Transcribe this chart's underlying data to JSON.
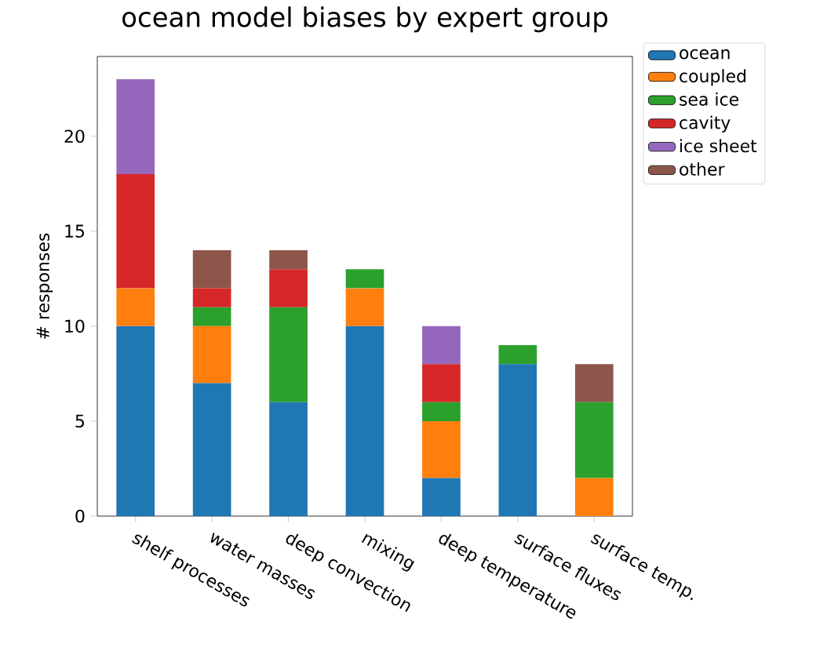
{
  "chart_data": {
    "type": "bar",
    "stacked": true,
    "title": "ocean model biases by expert group",
    "ylabel": "# responses",
    "categories": [
      "shelf processes",
      "water masses",
      "deep convection",
      "mixing",
      "deep temperature",
      "surface fluxes",
      "surface temp."
    ],
    "series": [
      {
        "name": "ocean",
        "color": "#1f77b4",
        "values": [
          10,
          7,
          6,
          10,
          2,
          8,
          0
        ]
      },
      {
        "name": "coupled",
        "color": "#ff7f0e",
        "values": [
          2,
          3,
          0,
          2,
          3,
          0,
          2
        ]
      },
      {
        "name": "sea ice",
        "color": "#2ca02c",
        "values": [
          0,
          1,
          5,
          1,
          1,
          1,
          4
        ]
      },
      {
        "name": "cavity",
        "color": "#d62728",
        "values": [
          6,
          1,
          2,
          0,
          2,
          0,
          0
        ]
      },
      {
        "name": "ice sheet",
        "color": "#9467bd",
        "values": [
          5,
          0,
          0,
          0,
          2,
          0,
          0
        ]
      },
      {
        "name": "other",
        "color": "#8c564b",
        "values": [
          0,
          2,
          1,
          0,
          0,
          0,
          2
        ]
      }
    ],
    "ylim": [
      0,
      24.2
    ],
    "yticks": [
      0,
      5,
      10,
      15,
      20
    ],
    "grid": false,
    "legend": "top right"
  }
}
